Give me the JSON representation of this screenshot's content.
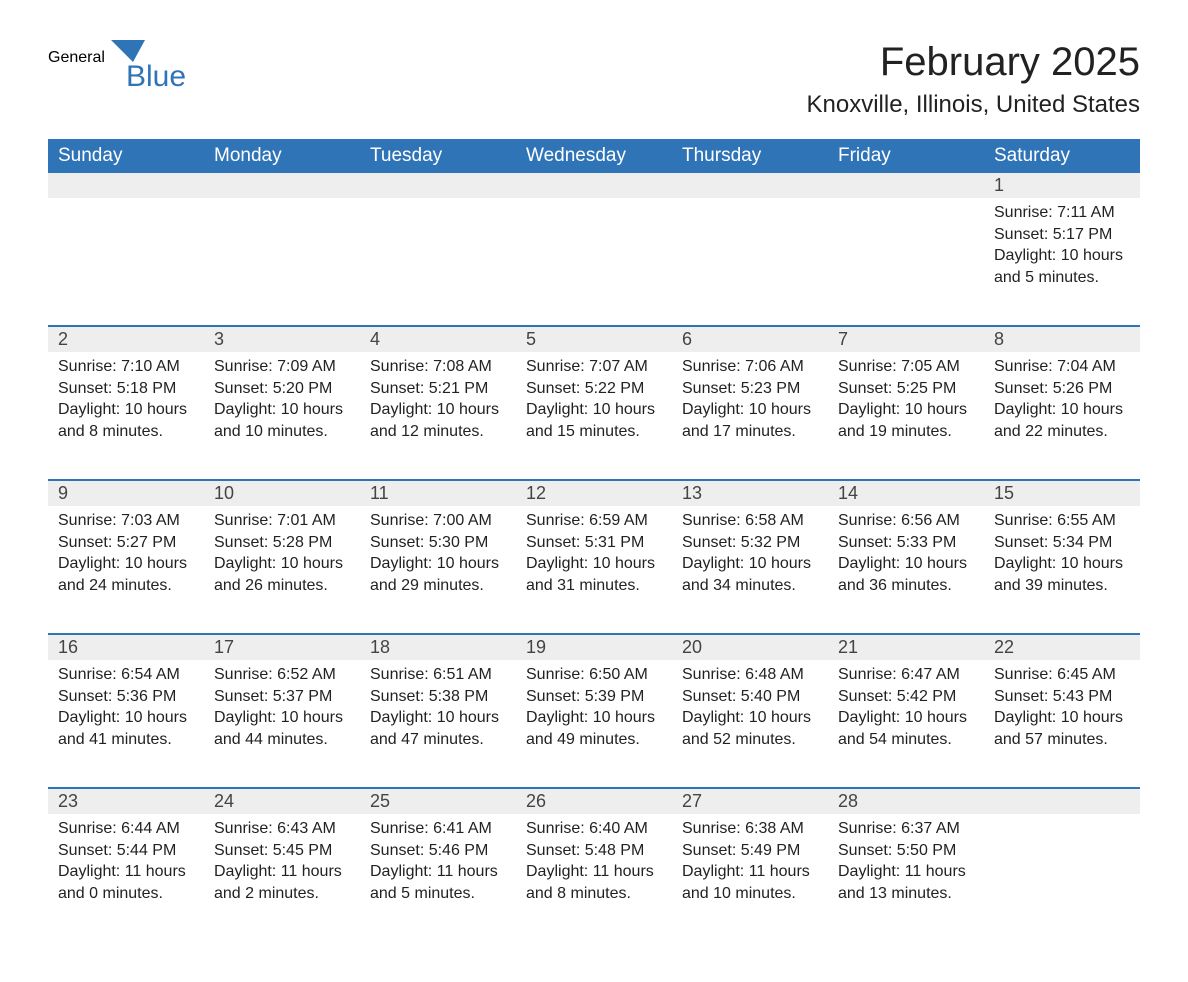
{
  "logo": {
    "text1": "General",
    "text2": "Blue",
    "brand_color": "#3074b8"
  },
  "title": "February 2025",
  "location": "Knoxville, Illinois, United States",
  "colors": {
    "header_bg": "#3074b8",
    "header_fg": "#ffffff",
    "daynum_bg": "#eeeeee",
    "sep": "#3074b8",
    "text": "#222222",
    "page_bg": "#ffffff"
  },
  "weekdays": [
    "Sunday",
    "Monday",
    "Tuesday",
    "Wednesday",
    "Thursday",
    "Friday",
    "Saturday"
  ],
  "weeks": [
    [
      null,
      null,
      null,
      null,
      null,
      null,
      {
        "n": "1",
        "sr": "Sunrise: 7:11 AM",
        "ss": "Sunset: 5:17 PM",
        "dl": "Daylight: 10 hours and 5 minutes."
      }
    ],
    [
      {
        "n": "2",
        "sr": "Sunrise: 7:10 AM",
        "ss": "Sunset: 5:18 PM",
        "dl": "Daylight: 10 hours and 8 minutes."
      },
      {
        "n": "3",
        "sr": "Sunrise: 7:09 AM",
        "ss": "Sunset: 5:20 PM",
        "dl": "Daylight: 10 hours and 10 minutes."
      },
      {
        "n": "4",
        "sr": "Sunrise: 7:08 AM",
        "ss": "Sunset: 5:21 PM",
        "dl": "Daylight: 10 hours and 12 minutes."
      },
      {
        "n": "5",
        "sr": "Sunrise: 7:07 AM",
        "ss": "Sunset: 5:22 PM",
        "dl": "Daylight: 10 hours and 15 minutes."
      },
      {
        "n": "6",
        "sr": "Sunrise: 7:06 AM",
        "ss": "Sunset: 5:23 PM",
        "dl": "Daylight: 10 hours and 17 minutes."
      },
      {
        "n": "7",
        "sr": "Sunrise: 7:05 AM",
        "ss": "Sunset: 5:25 PM",
        "dl": "Daylight: 10 hours and 19 minutes."
      },
      {
        "n": "8",
        "sr": "Sunrise: 7:04 AM",
        "ss": "Sunset: 5:26 PM",
        "dl": "Daylight: 10 hours and 22 minutes."
      }
    ],
    [
      {
        "n": "9",
        "sr": "Sunrise: 7:03 AM",
        "ss": "Sunset: 5:27 PM",
        "dl": "Daylight: 10 hours and 24 minutes."
      },
      {
        "n": "10",
        "sr": "Sunrise: 7:01 AM",
        "ss": "Sunset: 5:28 PM",
        "dl": "Daylight: 10 hours and 26 minutes."
      },
      {
        "n": "11",
        "sr": "Sunrise: 7:00 AM",
        "ss": "Sunset: 5:30 PM",
        "dl": "Daylight: 10 hours and 29 minutes."
      },
      {
        "n": "12",
        "sr": "Sunrise: 6:59 AM",
        "ss": "Sunset: 5:31 PM",
        "dl": "Daylight: 10 hours and 31 minutes."
      },
      {
        "n": "13",
        "sr": "Sunrise: 6:58 AM",
        "ss": "Sunset: 5:32 PM",
        "dl": "Daylight: 10 hours and 34 minutes."
      },
      {
        "n": "14",
        "sr": "Sunrise: 6:56 AM",
        "ss": "Sunset: 5:33 PM",
        "dl": "Daylight: 10 hours and 36 minutes."
      },
      {
        "n": "15",
        "sr": "Sunrise: 6:55 AM",
        "ss": "Sunset: 5:34 PM",
        "dl": "Daylight: 10 hours and 39 minutes."
      }
    ],
    [
      {
        "n": "16",
        "sr": "Sunrise: 6:54 AM",
        "ss": "Sunset: 5:36 PM",
        "dl": "Daylight: 10 hours and 41 minutes."
      },
      {
        "n": "17",
        "sr": "Sunrise: 6:52 AM",
        "ss": "Sunset: 5:37 PM",
        "dl": "Daylight: 10 hours and 44 minutes."
      },
      {
        "n": "18",
        "sr": "Sunrise: 6:51 AM",
        "ss": "Sunset: 5:38 PM",
        "dl": "Daylight: 10 hours and 47 minutes."
      },
      {
        "n": "19",
        "sr": "Sunrise: 6:50 AM",
        "ss": "Sunset: 5:39 PM",
        "dl": "Daylight: 10 hours and 49 minutes."
      },
      {
        "n": "20",
        "sr": "Sunrise: 6:48 AM",
        "ss": "Sunset: 5:40 PM",
        "dl": "Daylight: 10 hours and 52 minutes."
      },
      {
        "n": "21",
        "sr": "Sunrise: 6:47 AM",
        "ss": "Sunset: 5:42 PM",
        "dl": "Daylight: 10 hours and 54 minutes."
      },
      {
        "n": "22",
        "sr": "Sunrise: 6:45 AM",
        "ss": "Sunset: 5:43 PM",
        "dl": "Daylight: 10 hours and 57 minutes."
      }
    ],
    [
      {
        "n": "23",
        "sr": "Sunrise: 6:44 AM",
        "ss": "Sunset: 5:44 PM",
        "dl": "Daylight: 11 hours and 0 minutes."
      },
      {
        "n": "24",
        "sr": "Sunrise: 6:43 AM",
        "ss": "Sunset: 5:45 PM",
        "dl": "Daylight: 11 hours and 2 minutes."
      },
      {
        "n": "25",
        "sr": "Sunrise: 6:41 AM",
        "ss": "Sunset: 5:46 PM",
        "dl": "Daylight: 11 hours and 5 minutes."
      },
      {
        "n": "26",
        "sr": "Sunrise: 6:40 AM",
        "ss": "Sunset: 5:48 PM",
        "dl": "Daylight: 11 hours and 8 minutes."
      },
      {
        "n": "27",
        "sr": "Sunrise: 6:38 AM",
        "ss": "Sunset: 5:49 PM",
        "dl": "Daylight: 11 hours and 10 minutes."
      },
      {
        "n": "28",
        "sr": "Sunrise: 6:37 AM",
        "ss": "Sunset: 5:50 PM",
        "dl": "Daylight: 11 hours and 13 minutes."
      },
      null
    ]
  ]
}
